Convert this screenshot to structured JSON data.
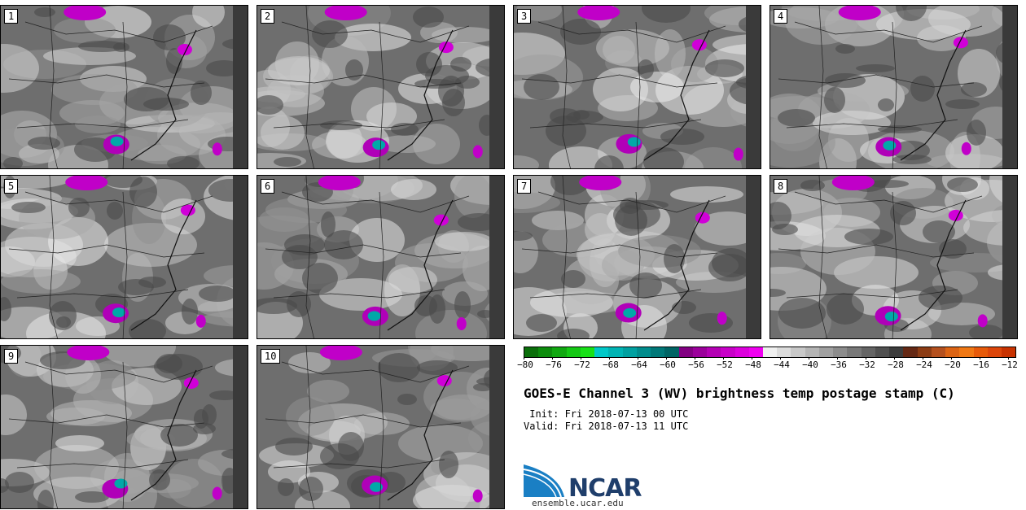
{
  "panels": [
    "1",
    "2",
    "3",
    "4",
    "5",
    "6",
    "7",
    "8",
    "9",
    "10"
  ],
  "colorbar": {
    "colors": [
      "#0a6e0a",
      "#0c8c0c",
      "#10a810",
      "#14c814",
      "#18e018",
      "#00c8c8",
      "#00b4b4",
      "#00a0a0",
      "#008c8c",
      "#007878",
      "#006464",
      "#820082",
      "#9b009b",
      "#b400b4",
      "#c800c8",
      "#dc00dc",
      "#f000f0",
      "#f0f0f0",
      "#dcdcdc",
      "#c8c8c8",
      "#b4b4b4",
      "#a0a0a0",
      "#8c8c8c",
      "#787878",
      "#646464",
      "#505050",
      "#3c3c3c",
      "#642814",
      "#8c3c14",
      "#b4501e",
      "#dc6414",
      "#f07814",
      "#e65a0a",
      "#dc460a",
      "#c83200"
    ],
    "ticks": [
      "−80",
      "−76",
      "−72",
      "−68",
      "−64",
      "−60",
      "−56",
      "−52",
      "−48",
      "−44",
      "−40",
      "−36",
      "−32",
      "−28",
      "−24",
      "−20",
      "−16",
      "−12"
    ]
  },
  "title": "GOES-E Channel 3 (WV) brightness temp postage stamp (C)",
  "init": " Init: Fri 2018-07-13 00 UTC",
  "valid": "Valid: Fri 2018-07-13 11 UTC",
  "logo": {
    "name": "NCAR",
    "url": "ensemble.ucar.edu"
  }
}
